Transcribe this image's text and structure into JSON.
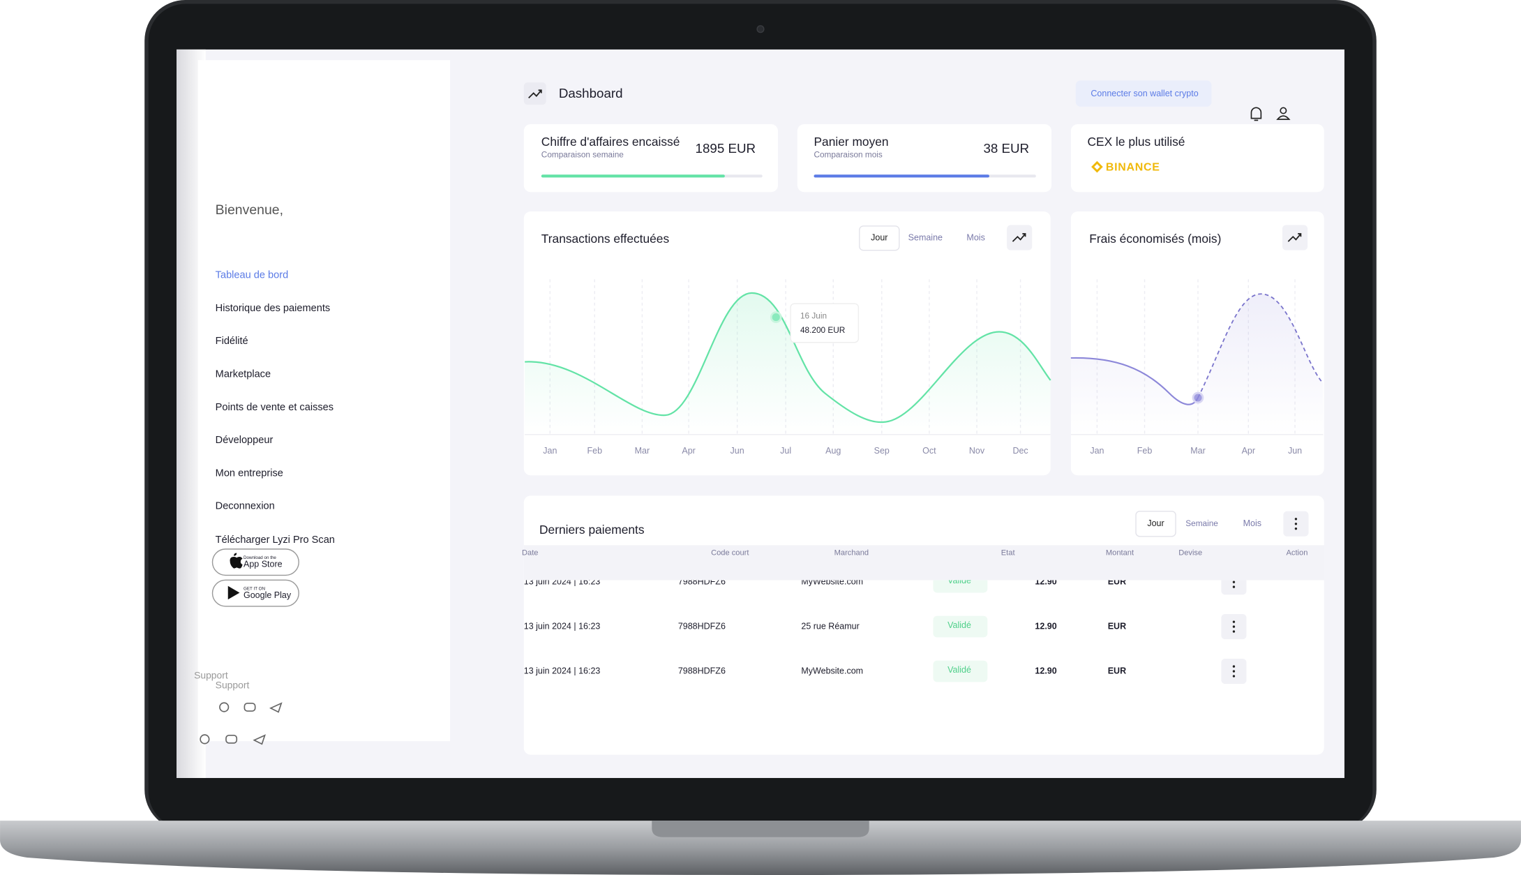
{
  "sidebar": {
    "greeting": "Bienvenue,",
    "nav": [
      "Tableau de bord",
      "Historique des paiements",
      "Fidélité",
      "Marketplace",
      "Points de vente et caisses",
      "Développeur",
      "Mon entreprise",
      "Deconnexion"
    ],
    "download": "Télécharger Lyzi Pro Scan",
    "app_store": {
      "small": "Download on the",
      "big": "App Store"
    },
    "google_play": {
      "small": "GET IT ON",
      "big": "Google Play"
    },
    "support": [
      "Support",
      "Support"
    ]
  },
  "header": {
    "title": "Dashboard",
    "wallet_button": "Connecter son wallet crypto"
  },
  "cards": [
    {
      "title": "Chiffre d'affaires encaissé",
      "subtitle": "Comparaison semaine",
      "value": "1895 EUR",
      "progress": 83
    },
    {
      "title": "Panier moyen",
      "subtitle": "Comparaison mois",
      "value": "38 EUR",
      "progress": 79
    },
    {
      "title": "CEX  le plus utilisé",
      "brand": "BINANCE"
    }
  ],
  "transactions": {
    "title": "Transactions effectuées",
    "tabs": [
      "Jour",
      "Semaine",
      "Mois"
    ],
    "months": [
      "Jan",
      "Feb",
      "Mar",
      "Apr",
      "Jun",
      "Jul",
      "Aug",
      "Sep",
      "Oct",
      "Nov",
      "Dec"
    ],
    "tooltip": {
      "date": "16 Juin",
      "amount": "48.200 EUR"
    }
  },
  "fees": {
    "title": "Frais économisés (mois)",
    "months": [
      "Jan",
      "Feb",
      "Mar",
      "Apr",
      "Jun"
    ]
  },
  "payments": {
    "title": "Derniers paiements",
    "tabs": [
      "Jour",
      "Semaine",
      "Mois"
    ],
    "columns": [
      "Date",
      "Code court",
      "Marchand",
      "Etat",
      "Montant",
      "Devise",
      "Action"
    ],
    "rows": [
      [
        "13 juin 2024 | 16:23",
        "7988HDFZ6",
        "MyWebsite.com",
        "Validé",
        "12.90",
        "EUR"
      ],
      [
        "13 juin 2024 | 16:23",
        "7988HDFZ6",
        "25 rue Réamur",
        "Validé",
        "12.90",
        "EUR"
      ],
      [
        "13 juin 2024 | 16:23",
        "7988HDFZ6",
        "MyWebsite.com",
        "Validé",
        "12.90",
        "EUR"
      ]
    ]
  }
}
